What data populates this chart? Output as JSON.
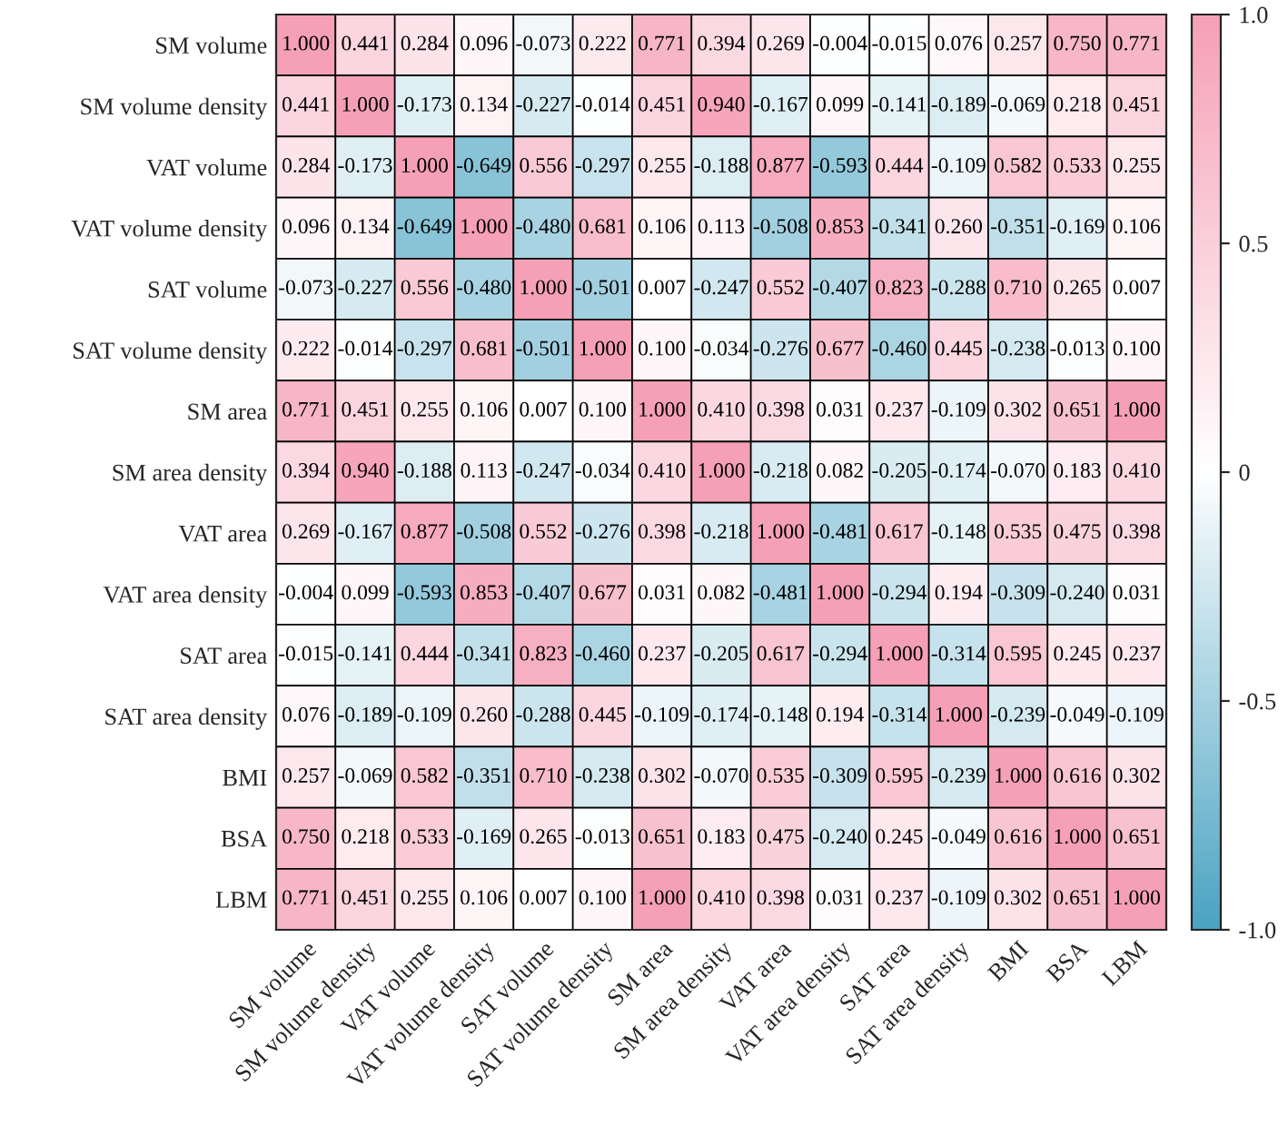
{
  "chart_data": {
    "type": "heatmap",
    "categories": [
      "SM volume",
      "SM volume density",
      "VAT volume",
      "VAT volume density",
      "SAT volume",
      "SAT volume density",
      "SM area",
      "SM area density",
      "VAT area",
      "VAT area density",
      "SAT area",
      "SAT area density",
      "BMI",
      "BSA",
      "LBM"
    ],
    "y_categories": [
      "SM volume",
      "SM volume density",
      "VAT volume",
      "VAT volume density",
      "SAT volume",
      "SAT volume density",
      "SM area",
      "SM area density",
      "VAT area",
      "VAT area density",
      "SAT area",
      "SAT area density",
      "BMI",
      "BSA",
      "LBM"
    ],
    "cells": [
      [
        1.0,
        0.441,
        0.284,
        0.096,
        -0.073,
        0.222,
        0.771,
        0.394,
        0.269,
        -0.004,
        -0.015,
        0.076,
        0.257,
        0.75,
        0.771
      ],
      [
        0.441,
        1.0,
        -0.173,
        0.134,
        -0.227,
        -0.014,
        0.451,
        0.94,
        -0.167,
        0.099,
        -0.141,
        -0.189,
        -0.069,
        0.218,
        0.451
      ],
      [
        0.284,
        -0.173,
        1.0,
        -0.649,
        0.556,
        -0.297,
        0.255,
        -0.188,
        0.877,
        -0.593,
        0.444,
        -0.109,
        0.582,
        0.533,
        0.255
      ],
      [
        0.096,
        0.134,
        -0.649,
        1.0,
        -0.48,
        0.681,
        0.106,
        0.113,
        -0.508,
        0.853,
        -0.341,
        0.26,
        -0.351,
        -0.169,
        0.106
      ],
      [
        -0.073,
        -0.227,
        0.556,
        -0.48,
        1.0,
        -0.501,
        0.007,
        -0.247,
        0.552,
        -0.407,
        0.823,
        -0.288,
        0.71,
        0.265,
        0.007
      ],
      [
        0.222,
        -0.014,
        -0.297,
        0.681,
        -0.501,
        1.0,
        0.1,
        -0.034,
        -0.276,
        0.677,
        -0.46,
        0.445,
        -0.238,
        -0.013,
        0.1
      ],
      [
        0.771,
        0.451,
        0.255,
        0.106,
        0.007,
        0.1,
        1.0,
        0.41,
        0.398,
        0.031,
        0.237,
        -0.109,
        0.302,
        0.651,
        1.0
      ],
      [
        0.394,
        0.94,
        -0.188,
        0.113,
        -0.247,
        -0.034,
        0.41,
        1.0,
        -0.218,
        0.082,
        -0.205,
        -0.174,
        -0.07,
        0.183,
        0.41
      ],
      [
        0.269,
        -0.167,
        0.877,
        -0.508,
        0.552,
        -0.276,
        0.398,
        -0.218,
        1.0,
        -0.481,
        0.617,
        -0.148,
        0.535,
        0.475,
        0.398
      ],
      [
        -0.004,
        0.099,
        -0.593,
        0.853,
        -0.407,
        0.677,
        0.031,
        0.082,
        -0.481,
        1.0,
        -0.294,
        0.194,
        -0.309,
        -0.24,
        0.031
      ],
      [
        -0.015,
        -0.141,
        0.444,
        -0.341,
        0.823,
        -0.46,
        0.237,
        -0.205,
        0.617,
        -0.294,
        1.0,
        -0.314,
        0.595,
        0.245,
        0.237
      ],
      [
        0.076,
        -0.189,
        -0.109,
        0.26,
        -0.288,
        0.445,
        -0.109,
        -0.174,
        -0.148,
        0.194,
        -0.314,
        1.0,
        -0.239,
        -0.049,
        -0.109
      ],
      [
        0.257,
        -0.069,
        0.582,
        -0.351,
        0.71,
        -0.238,
        0.302,
        -0.07,
        0.535,
        -0.309,
        0.595,
        -0.239,
        1.0,
        0.616,
        0.302
      ],
      [
        0.75,
        0.218,
        0.533,
        -0.169,
        0.265,
        -0.013,
        0.651,
        0.183,
        0.475,
        -0.24,
        0.245,
        -0.049,
        0.616,
        1.0,
        0.651
      ],
      [
        0.771,
        0.451,
        0.255,
        0.106,
        0.007,
        0.1,
        1.0,
        0.41,
        0.398,
        0.031,
        0.237,
        -0.109,
        0.302,
        0.651,
        1.0
      ]
    ],
    "cell_labels": [
      [
        "1.000",
        "0.441",
        "0.284",
        "0.096",
        "-0.073",
        "0.222",
        "0.771",
        "0.394",
        "0.269",
        "-0.004",
        "-0.015",
        "0.076",
        "0.257",
        "0.750",
        "0.771"
      ],
      [
        "0.441",
        "1.000",
        "-0.173",
        "0.134",
        "-0.227",
        "-0.014",
        "0.451",
        "0.940",
        "-0.167",
        "0.099",
        "-0.141",
        "-0.189",
        "-0.069",
        "0.218",
        "0.451"
      ],
      [
        "0.284",
        "-0.173",
        "1.000",
        "-0.649",
        "0.556",
        "-0.297",
        "0.255",
        "-0.188",
        "0.877",
        "-0.593",
        "0.444",
        "-0.109",
        "0.582",
        "0.533",
        "0.255"
      ],
      [
        "0.096",
        "0.134",
        "-0.649",
        "1.000",
        "-0.480",
        "0.681",
        "0.106",
        "0.113",
        "-0.508",
        "0.853",
        "-0.341",
        "0.260",
        "-0.351",
        "-0.169",
        "0.106"
      ],
      [
        "-0.073",
        "-0.227",
        "0.556",
        "-0.480",
        "1.000",
        "-0.501",
        "0.007",
        "-0.247",
        "0.552",
        "-0.407",
        "0.823",
        "-0.288",
        "0.710",
        "0.265",
        "0.007"
      ],
      [
        "0.222",
        "-0.014",
        "-0.297",
        "0.681",
        "-0.501",
        "1.000",
        "0.100",
        "-0.034",
        "-0.276",
        "0.677",
        "-0.460",
        "0.445",
        "-0.238",
        "-0.013",
        "0.100"
      ],
      [
        "0.771",
        "0.451",
        "0.255",
        "0.106",
        "0.007",
        "0.100",
        "1.000",
        "0.410",
        "0.398",
        "0.031",
        "0.237",
        "-0.109",
        "0.302",
        "0.651",
        "1.000"
      ],
      [
        "0.394",
        "0.940",
        "-0.188",
        "0.113",
        "-0.247",
        "-0.034",
        "0.410",
        "1.000",
        "-0.218",
        "0.082",
        "-0.205",
        "-0.174",
        "-0.070",
        "0.183",
        "0.410"
      ],
      [
        "0.269",
        "-0.167",
        "0.877",
        "-0.508",
        "0.552",
        "-0.276",
        "0.398",
        "-0.218",
        "1.000",
        "-0.481",
        "0.617",
        "-0.148",
        "0.535",
        "0.475",
        "0.398"
      ],
      [
        "-0.004",
        "0.099",
        "-0.593",
        "0.853",
        "-0.407",
        "0.677",
        "0.031",
        "0.082",
        "-0.481",
        "1.000",
        "-0.294",
        "0.194",
        "-0.309",
        "-0.240",
        "0.031"
      ],
      [
        "-0.015",
        "-0.141",
        "0.444",
        "-0.341",
        "0.823",
        "-0.460",
        "0.237",
        "-0.205",
        "0.617",
        "-0.294",
        "1.000",
        "-0.314",
        "0.595",
        "0.245",
        "0.237"
      ],
      [
        "0.076",
        "-0.189",
        "-0.109",
        "0.260",
        "-0.288",
        "0.445",
        "-0.109",
        "-0.174",
        "-0.148",
        "0.194",
        "-0.314",
        "1.000",
        "-0.239",
        "-0.049",
        "-0.109"
      ],
      [
        "0.257",
        "-0.069",
        "0.582",
        "-0.351",
        "0.710",
        "-0.238",
        "0.302",
        "-0.070",
        "0.535",
        "-0.309",
        "0.595",
        "-0.239",
        "1.000",
        "0.616",
        "0.302"
      ],
      [
        "0.750",
        "0.218",
        "0.533",
        "-0.169",
        "0.265",
        "-0.013",
        "0.651",
        "0.183",
        "0.475",
        "-0.240",
        "0.245",
        "-0.049",
        "0.616",
        "1.000",
        "0.651"
      ],
      [
        "0.771",
        "0.451",
        "0.255",
        "0.106",
        "0.007",
        "0.100",
        "1.000",
        "0.410",
        "0.398",
        "0.031",
        "0.237",
        "-0.109",
        "0.302",
        "0.651",
        "1.000"
      ]
    ],
    "clim": [
      -1.0,
      1.0
    ],
    "cticks": [
      {
        "value": -1.0,
        "label": "-1.0"
      },
      {
        "value": -0.5,
        "label": "-0.5"
      },
      0,
      {
        "value": 0.5,
        "label": "0.5"
      },
      {
        "value": 1.0,
        "label": "1.0"
      }
    ]
  }
}
